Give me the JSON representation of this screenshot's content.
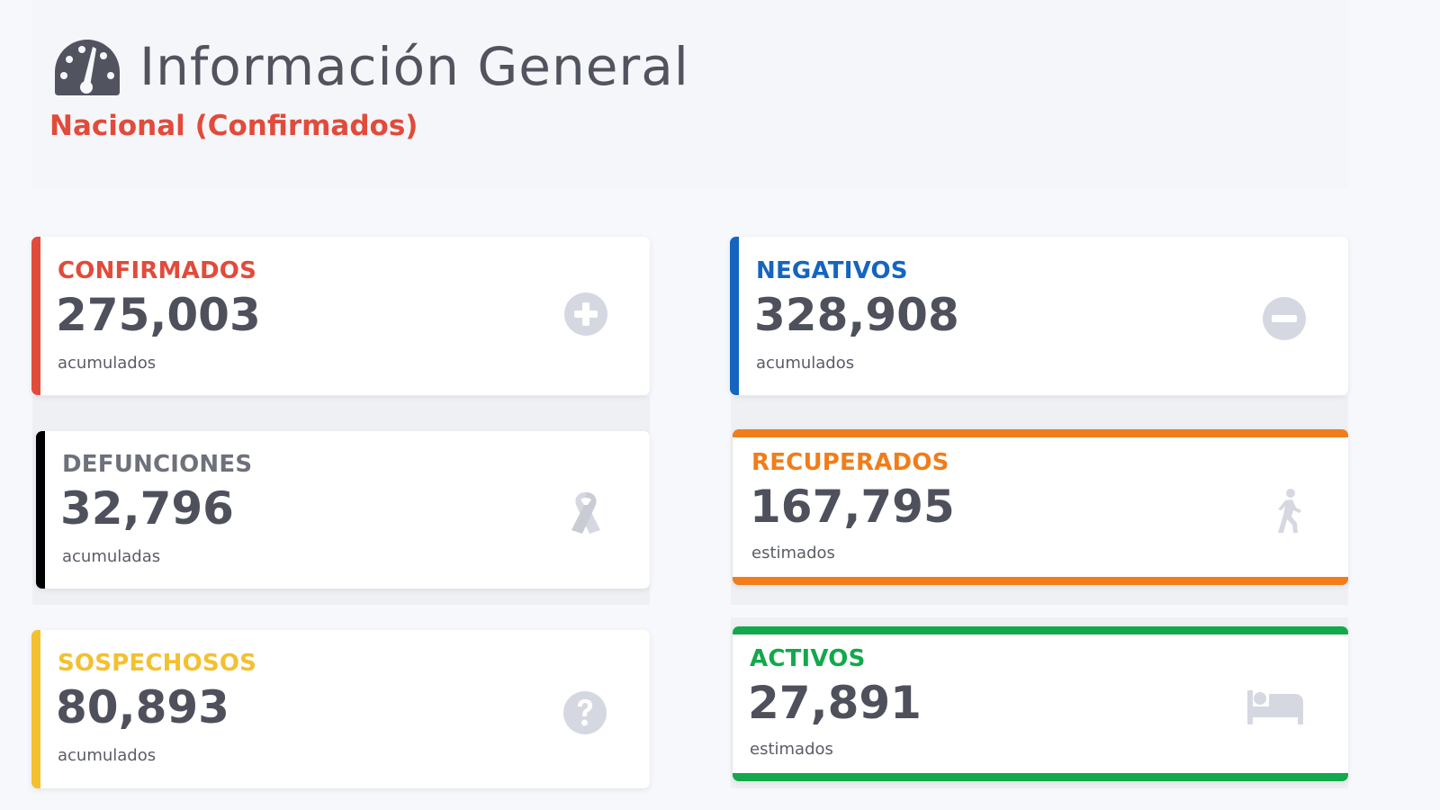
{
  "header": {
    "title": "Información General",
    "subtitle": "Nacional (Confirmados)",
    "icon": "tachometer-icon"
  },
  "colors": {
    "title": "#51545f",
    "subtitle": "#e14b3b",
    "confirmados": "#e14b3b",
    "negativos": "#1565c0",
    "defunciones": "#000000",
    "recuperados": "#f07d1a",
    "sospechosos": "#f3c02f",
    "activos": "#13a84b",
    "icon_gray": "#d6d8e1",
    "value": "#4e515c"
  },
  "cards": {
    "confirmados": {
      "label": "CONFIRMADOS",
      "value": "275,003",
      "sub": "acumulados",
      "icon": "plus-circle-icon"
    },
    "negativos": {
      "label": "NEGATIVOS",
      "value": "328,908",
      "sub": "acumulados",
      "icon": "minus-circle-icon"
    },
    "defunciones": {
      "label": "DEFUNCIONES",
      "value": "32,796",
      "sub": "acumuladas",
      "icon": "ribbon-icon"
    },
    "recuperados": {
      "label": "RECUPERADOS",
      "value": "167,795",
      "sub": "estimados",
      "icon": "walking-icon"
    },
    "sospechosos": {
      "label": "SOSPECHOSOS",
      "value": "80,893",
      "sub": "acumulados",
      "icon": "question-circle-icon"
    },
    "activos": {
      "label": "ACTIVOS",
      "value": "27,891",
      "sub": "estimados",
      "icon": "bed-icon"
    }
  }
}
